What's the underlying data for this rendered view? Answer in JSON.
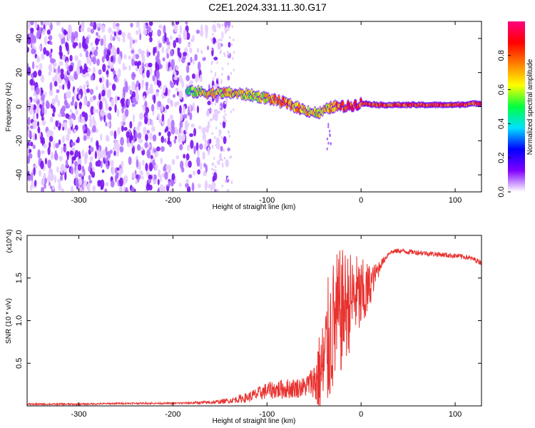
{
  "title": "C2E1.2024.331.11.30.G17",
  "chart_data": [
    {
      "type": "heatmap",
      "xlabel": "Height of straight line (km)",
      "ylabel": "Frequency (Hz)",
      "xlim": [
        -355,
        128
      ],
      "ylim": [
        -50,
        50
      ],
      "xticks": [
        -300,
        -200,
        -100,
        0,
        100
      ],
      "yticks": [
        -40,
        -20,
        0,
        20,
        40
      ],
      "colorbar": {
        "label": "Normalized spectral amplitude",
        "range": [
          0,
          1
        ],
        "ticks": [
          "0.0",
          "0.2",
          "0.4",
          "0.6",
          "0.8"
        ],
        "colors": [
          "#ffffff",
          "#8000ff",
          "#0000ff",
          "#00e0ff",
          "#00ff40",
          "#ffff00",
          "#ff8000",
          "#ff0000",
          "#ff0080"
        ]
      },
      "noise_region_km": [
        -355,
        -140
      ],
      "ridge": {
        "description_points": [
          {
            "x": -185,
            "f": 9,
            "amp": 0.5
          },
          {
            "x": -160,
            "f": 8,
            "amp": 0.65
          },
          {
            "x": -140,
            "f": 8,
            "amp": 0.7
          },
          {
            "x": -120,
            "f": 7,
            "amp": 0.6
          },
          {
            "x": -100,
            "f": 5,
            "amp": 0.65
          },
          {
            "x": -80,
            "f": 2,
            "amp": 0.8
          },
          {
            "x": -60,
            "f": -2,
            "amp": 0.7
          },
          {
            "x": -45,
            "f": -4,
            "amp": 0.6
          },
          {
            "x": -30,
            "f": 0,
            "amp": 0.75
          },
          {
            "x": -15,
            "f": 0,
            "amp": 0.9
          },
          {
            "x": 0,
            "f": 2,
            "amp": 0.85
          },
          {
            "x": 20,
            "f": 1,
            "amp": 0.8
          },
          {
            "x": 60,
            "f": 1,
            "amp": 0.85
          },
          {
            "x": 100,
            "f": 1,
            "amp": 0.85
          },
          {
            "x": 128,
            "f": 2,
            "amp": 0.8
          }
        ]
      }
    },
    {
      "type": "line",
      "xlabel": "Height of straight line (km)",
      "ylabel": "SNR (10 * v/v)",
      "y_multiplier": "(x10^4)",
      "xlim": [
        -355,
        128
      ],
      "ylim": [
        0,
        2.0
      ],
      "xticks": [
        -300,
        -200,
        -100,
        0,
        100
      ],
      "yticks": [
        "0.5",
        "1.0",
        "1.5",
        "2.0"
      ],
      "series": [
        {
          "color": "#e8312e",
          "x": [
            -355,
            -300,
            -250,
            -200,
            -160,
            -140,
            -120,
            -100,
            -80,
            -60,
            -50,
            -40,
            -35,
            -30,
            -25,
            -20,
            -15,
            -10,
            -5,
            0,
            5,
            10,
            15,
            20,
            25,
            30,
            40,
            60,
            80,
            100,
            110,
            120,
            128
          ],
          "y": [
            0.02,
            0.02,
            0.03,
            0.03,
            0.04,
            0.06,
            0.1,
            0.18,
            0.2,
            0.22,
            0.3,
            0.5,
            0.8,
            1.0,
            1.1,
            1.2,
            1.25,
            1.3,
            1.35,
            1.3,
            1.35,
            1.45,
            1.55,
            1.65,
            1.72,
            1.8,
            1.82,
            1.8,
            1.78,
            1.76,
            1.75,
            1.72,
            1.68
          ],
          "spread": [
            0.01,
            0.01,
            0.01,
            0.01,
            0.02,
            0.03,
            0.06,
            0.1,
            0.12,
            0.12,
            0.2,
            0.4,
            0.5,
            0.5,
            0.5,
            0.45,
            0.4,
            0.35,
            0.3,
            0.3,
            0.25,
            0.15,
            0.08,
            0.06,
            0.04,
            0.03,
            0.03,
            0.03,
            0.03,
            0.03,
            0.03,
            0.03,
            0.03
          ]
        }
      ]
    }
  ]
}
